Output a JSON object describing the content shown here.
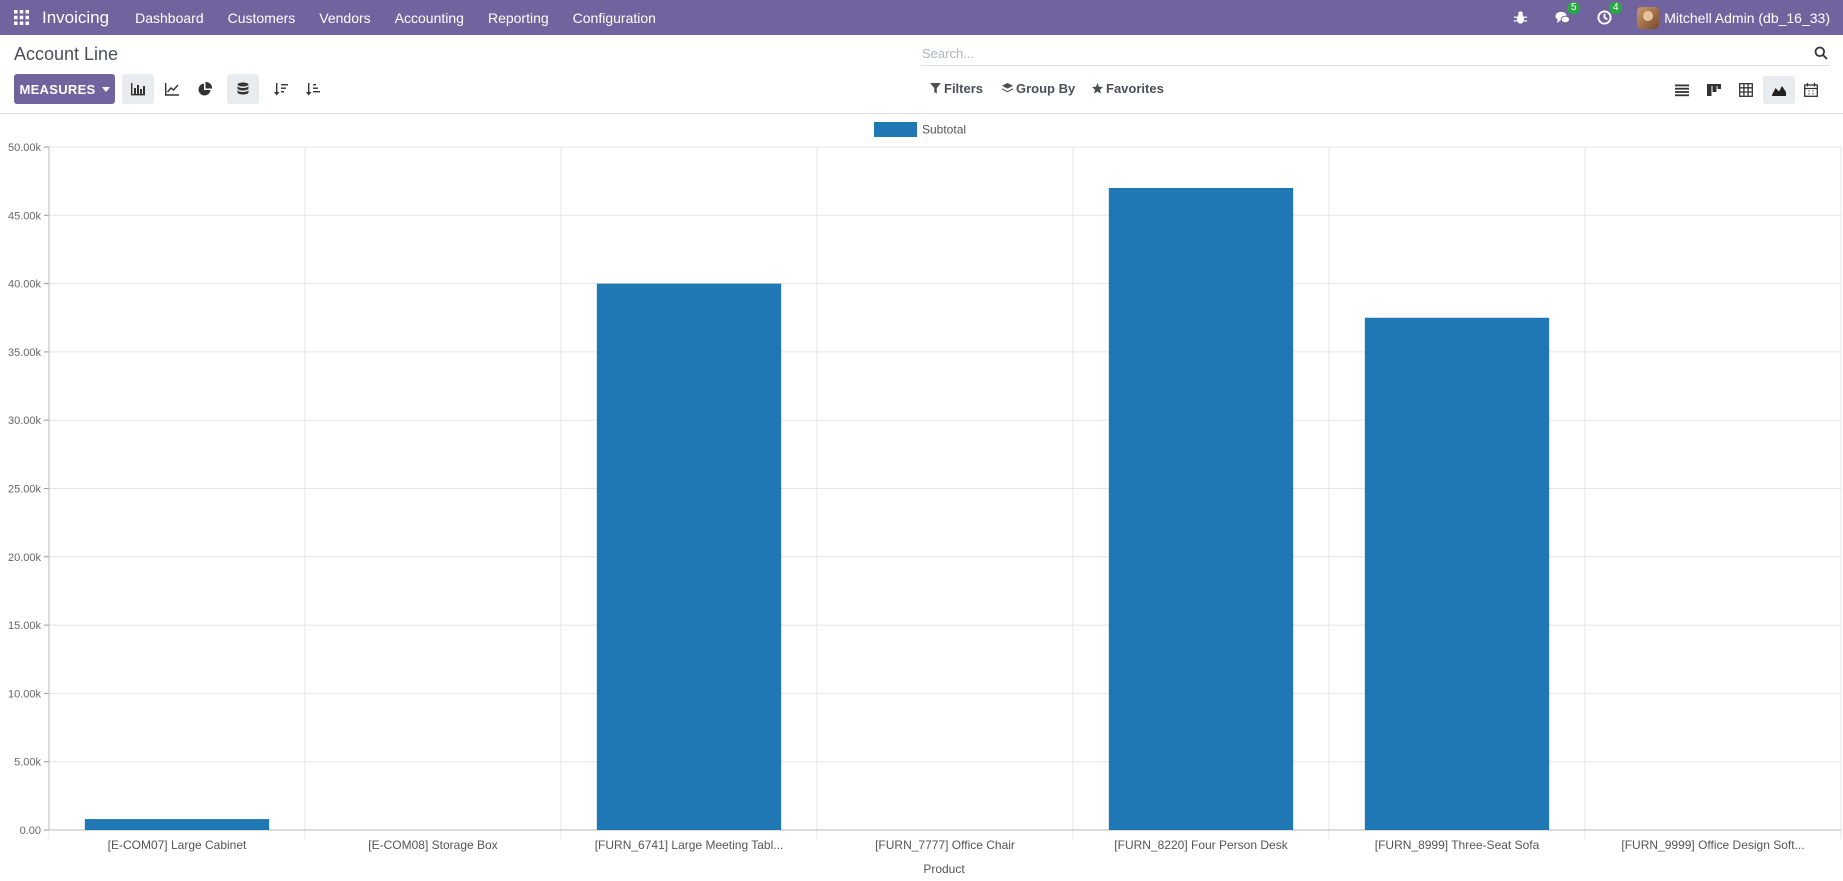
{
  "navbar": {
    "brand": "Invoicing",
    "menu": [
      "Dashboard",
      "Customers",
      "Vendors",
      "Accounting",
      "Reporting",
      "Configuration"
    ],
    "messages_badge": "5",
    "activities_badge": "4",
    "user": "Mitchell Admin (db_16_33)"
  },
  "control_panel": {
    "title": "Account Line",
    "search_placeholder": "Search...",
    "measures_label": "MEASURES",
    "filters_label": "Filters",
    "group_by_label": "Group By",
    "favorites_label": "Favorites"
  },
  "icons": {
    "apps": "apps-grid-icon",
    "debug": "bug-icon",
    "messages": "chat-icon",
    "activities": "clock-icon",
    "search": "search-icon",
    "bar": "bar-chart-icon",
    "line": "line-chart-icon",
    "pie": "pie-chart-icon",
    "stacked": "stack-icon",
    "sort_desc": "sort-descending-icon",
    "sort_asc": "sort-ascending-icon",
    "views": [
      "list-view-icon",
      "kanban-view-icon",
      "pivot-view-icon",
      "graph-view-icon",
      "calendar-view-icon"
    ]
  },
  "colors": {
    "brand": "#71639e",
    "series": "#1f77b4"
  },
  "chart_data": {
    "type": "bar",
    "categories": [
      "[E-COM07] Large Cabinet",
      "[E-COM08] Storage Box",
      "[FURN_6741] Large Meeting Tabl...",
      "[FURN_7777] Office Chair",
      "[FURN_8220] Four Person Desk",
      "[FURN_8999] Three-Seat Sofa",
      "[FURN_9999] Office Design Soft..."
    ],
    "series": [
      {
        "name": "Subtotal",
        "values": [
          800,
          0,
          40000,
          0,
          47000,
          37500,
          0
        ]
      }
    ],
    "xlabel": "Product",
    "ylabel": "",
    "ylim": [
      0,
      50000
    ],
    "yticks": [
      0,
      5000,
      10000,
      15000,
      20000,
      25000,
      30000,
      35000,
      40000,
      45000,
      50000
    ],
    "ytick_labels": [
      "0.00",
      "5.00k",
      "10.00k",
      "15.00k",
      "20.00k",
      "25.00k",
      "30.00k",
      "35.00k",
      "40.00k",
      "45.00k",
      "50.00k"
    ],
    "grid": true,
    "legend": "top-center"
  }
}
